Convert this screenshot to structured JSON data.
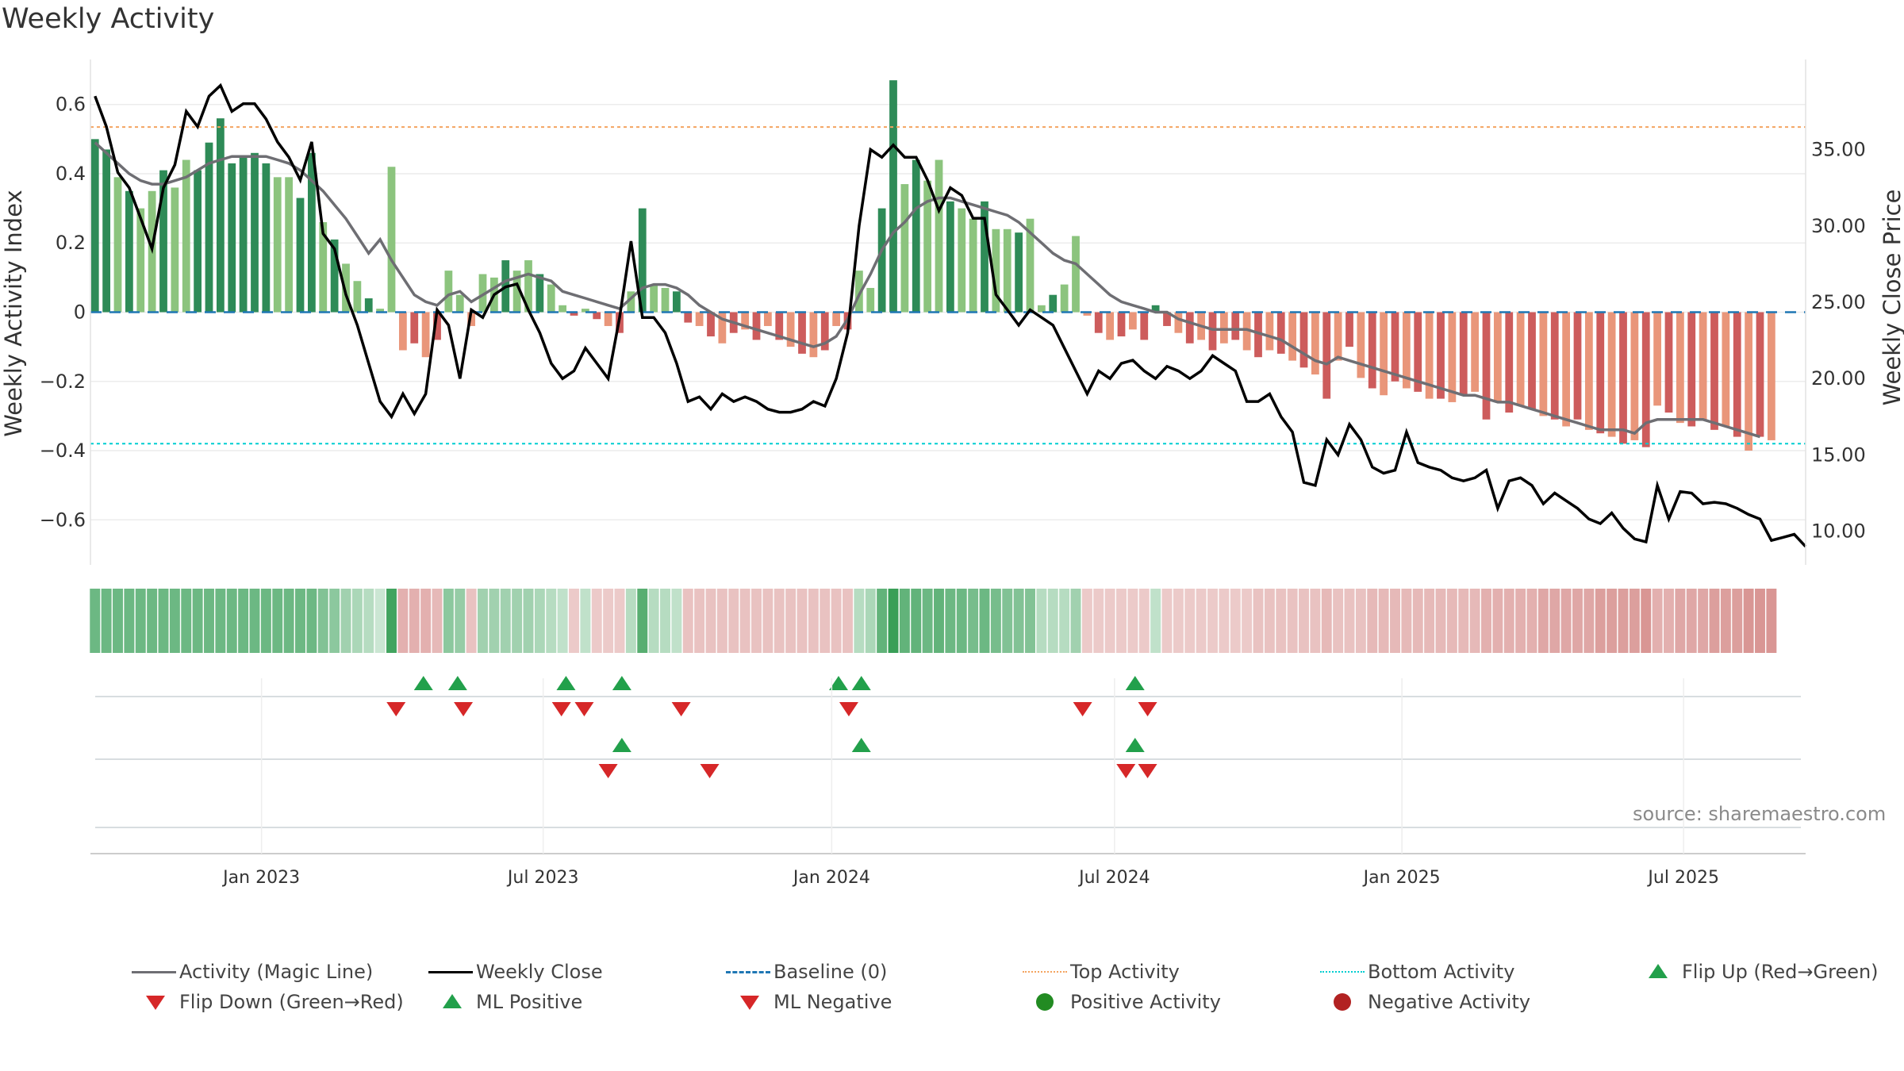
{
  "title": "Weekly Activity",
  "source": "source: sharemaestro.com",
  "colors": {
    "pos_strong": "#2e8b57",
    "pos_light": "#8cc47e",
    "neg_strong": "#cd5c5c",
    "neg_light": "#e9967a",
    "magic_line": "#6e6e73",
    "close_line": "#000000",
    "baseline": "#1f77b4",
    "top_activity": "#f4a460",
    "bottom_activity": "#00ced1",
    "flip_up": "#22a04b",
    "flip_down": "#d62728",
    "pos_dot": "#228b22",
    "neg_dot": "#b22222"
  },
  "legend": [
    {
      "label": "Activity (Magic Line)",
      "symbol": "line",
      "color": "#6e6e73",
      "style": "solid"
    },
    {
      "label": "Weekly Close",
      "symbol": "line",
      "color": "#000000",
      "style": "solid"
    },
    {
      "label": "Baseline (0)",
      "symbol": "line",
      "color": "#1f77b4",
      "style": "dashed"
    },
    {
      "label": "Top Activity",
      "symbol": "line",
      "color": "#f4a460",
      "style": "dotted"
    },
    {
      "label": "Bottom Activity",
      "symbol": "line",
      "color": "#00ced1",
      "style": "dotted"
    },
    {
      "label": "Flip Up (Red→Green)",
      "symbol": "tri-up",
      "color": "#22a04b"
    },
    {
      "label": "Flip Down (Green→Red)",
      "symbol": "tri-down",
      "color": "#d62728"
    },
    {
      "label": "ML Positive",
      "symbol": "tri-up",
      "color": "#22a04b"
    },
    {
      "label": "ML Negative",
      "symbol": "tri-down",
      "color": "#d62728"
    },
    {
      "label": "Positive Activity",
      "symbol": "dot",
      "color": "#228b22"
    },
    {
      "label": "Negative Activity",
      "symbol": "dot",
      "color": "#b22222"
    }
  ],
  "chart_data": {
    "type": "bar",
    "title": "Weekly Activity",
    "ylabel": "Weekly Activity Index",
    "y2label": "Weekly Close Price",
    "ylim": [
      -0.73,
      0.73
    ],
    "y2lim": [
      7.8,
      40.9
    ],
    "yticks": [
      0.6,
      0.4,
      0.2,
      0,
      -0.2,
      -0.4,
      -0.6
    ],
    "ytick_labels": [
      "0.6",
      "0.4",
      "0.2",
      "0",
      "−0.2",
      "−0.4",
      "−0.6"
    ],
    "y2ticks": [
      35,
      30,
      25,
      20,
      15,
      10
    ],
    "y2tick_labels": [
      "35.00",
      "30.00",
      "25.00",
      "20.00",
      "15.00",
      "10.00"
    ],
    "top_activity": 0.535,
    "bottom_activity": -0.38,
    "baseline": 0,
    "start_date": "2022-10-17",
    "week_count": 150,
    "x_range": [
      -0.4,
      150
    ],
    "xticks": [
      {
        "pos": 14.6,
        "label": "Jan 2023"
      },
      {
        "pos": 39.3,
        "label": "Jul 2023"
      },
      {
        "pos": 64.6,
        "label": "Jan 2024"
      },
      {
        "pos": 89.4,
        "label": "Jul 2024"
      },
      {
        "pos": 114.6,
        "label": "Jan 2025"
      },
      {
        "pos": 139.3,
        "label": "Jul 2025"
      }
    ],
    "series": [
      {
        "name": "Weekly Activity Index",
        "type": "bar",
        "values": [
          0.5,
          0.47,
          0.39,
          0.35,
          0.3,
          0.35,
          0.41,
          0.36,
          0.44,
          0.41,
          0.49,
          0.56,
          0.43,
          0.45,
          0.46,
          0.43,
          0.39,
          0.39,
          0.33,
          0.46,
          0.26,
          0.21,
          0.14,
          0.09,
          0.04,
          0.01,
          0.42,
          -0.11,
          -0.09,
          -0.13,
          -0.08,
          0.12,
          0.05,
          -0.04,
          0.11,
          0.1,
          0.15,
          0.12,
          0.15,
          0.11,
          0.08,
          0.02,
          -0.01,
          0.01,
          -0.02,
          -0.04,
          -0.06,
          0.06,
          0.3,
          0.08,
          0.07,
          0.06,
          -0.03,
          -0.04,
          -0.07,
          -0.09,
          -0.06,
          -0.05,
          -0.08,
          -0.04,
          -0.08,
          -0.1,
          -0.12,
          -0.13,
          -0.11,
          -0.04,
          -0.05,
          0.12,
          0.07,
          0.3,
          0.67,
          0.37,
          0.44,
          0.38,
          0.44,
          0.32,
          0.3,
          0.27,
          0.32,
          0.24,
          0.24,
          0.23,
          0.27,
          0.02,
          0.05,
          0.08,
          0.22,
          -0.01,
          -0.06,
          -0.08,
          -0.07,
          -0.05,
          -0.08,
          0.02,
          -0.04,
          -0.06,
          -0.09,
          -0.08,
          -0.11,
          -0.09,
          -0.08,
          -0.11,
          -0.13,
          -0.11,
          -0.12,
          -0.14,
          -0.16,
          -0.18,
          -0.25,
          -0.14,
          -0.1,
          -0.19,
          -0.22,
          -0.24,
          -0.2,
          -0.22,
          -0.23,
          -0.25,
          -0.25,
          -0.26,
          -0.24,
          -0.23,
          -0.31,
          -0.26,
          -0.29,
          -0.27,
          -0.28,
          -0.3,
          -0.31,
          -0.33,
          -0.31,
          -0.34,
          -0.35,
          -0.36,
          -0.38,
          -0.37,
          -0.39,
          -0.27,
          -0.29,
          -0.32,
          -0.33,
          -0.31,
          -0.34,
          -0.33,
          -0.36,
          -0.4,
          -0.36,
          -0.37
        ]
      },
      {
        "name": "Activity (Magic Line)",
        "type": "line",
        "values": [
          0.49,
          0.46,
          0.43,
          0.4,
          0.38,
          0.37,
          0.37,
          0.38,
          0.39,
          0.41,
          0.43,
          0.44,
          0.45,
          0.45,
          0.45,
          0.45,
          0.44,
          0.43,
          0.41,
          0.38,
          0.35,
          0.31,
          0.27,
          0.22,
          0.17,
          0.21,
          0.15,
          0.1,
          0.05,
          0.03,
          0.02,
          0.05,
          0.06,
          0.03,
          0.05,
          0.07,
          0.09,
          0.1,
          0.11,
          0.1,
          0.09,
          0.06,
          0.05,
          0.04,
          0.03,
          0.02,
          0.01,
          0.04,
          0.07,
          0.08,
          0.08,
          0.07,
          0.05,
          0.02,
          0,
          -0.02,
          -0.03,
          -0.04,
          -0.05,
          -0.06,
          -0.07,
          -0.08,
          -0.09,
          -0.1,
          -0.09,
          -0.07,
          -0.02,
          0.05,
          0.11,
          0.18,
          0.23,
          0.26,
          0.3,
          0.32,
          0.33,
          0.33,
          0.32,
          0.31,
          0.3,
          0.29,
          0.28,
          0.26,
          0.23,
          0.2,
          0.17,
          0.15,
          0.14,
          0.11,
          0.08,
          0.05,
          0.03,
          0.02,
          0.01,
          0,
          0,
          -0.02,
          -0.03,
          -0.04,
          -0.05,
          -0.05,
          -0.05,
          -0.05,
          -0.06,
          -0.07,
          -0.08,
          -0.1,
          -0.12,
          -0.14,
          -0.15,
          -0.13,
          -0.14,
          -0.15,
          -0.16,
          -0.17,
          -0.18,
          -0.19,
          -0.2,
          -0.21,
          -0.22,
          -0.23,
          -0.24,
          -0.24,
          -0.25,
          -0.26,
          -0.26,
          -0.27,
          -0.28,
          -0.29,
          -0.3,
          -0.31,
          -0.32,
          -0.33,
          -0.34,
          -0.34,
          -0.34,
          -0.35,
          -0.32,
          -0.31,
          -0.31,
          -0.31,
          -0.31,
          -0.31,
          -0.32,
          -0.33,
          -0.34,
          -0.35,
          -0.36
        ]
      },
      {
        "name": "Weekly Close",
        "type": "line",
        "axis": "y2",
        "values": [
          38.5,
          36.5,
          33.5,
          32.5,
          30.5,
          28.5,
          32.5,
          34,
          37.5,
          36.5,
          38.5,
          39.2,
          37.5,
          38,
          38,
          37,
          35.5,
          34.5,
          33,
          35.5,
          29.5,
          28.5,
          25.5,
          23.5,
          21,
          18.5,
          17.5,
          19,
          17.7,
          19,
          24.5,
          23.5,
          20,
          24.5,
          24,
          25.5,
          26,
          26.2,
          24.5,
          23,
          21,
          20,
          20.5,
          22,
          21,
          20,
          24,
          29,
          24,
          24,
          23,
          21,
          18.5,
          18.8,
          18,
          19,
          18.5,
          18.8,
          18.5,
          18,
          17.8,
          17.8,
          18,
          18.5,
          18.2,
          20,
          23,
          30,
          35,
          34.5,
          35.3,
          34.5,
          34.5,
          33,
          31,
          32.5,
          32,
          30.5,
          30.5,
          25.5,
          24.5,
          23.5,
          24.5,
          24,
          23.5,
          22,
          20.5,
          19,
          20.5,
          20,
          21,
          21.2,
          20.5,
          20,
          20.8,
          20.5,
          20,
          20.5,
          21.5,
          21,
          20.5,
          18.5,
          18.5,
          19,
          17.5,
          16.5,
          13.2,
          13,
          16,
          15,
          17,
          16,
          14.2,
          13.8,
          14,
          16.5,
          14.5,
          14.2,
          14,
          13.5,
          13.3,
          13.5,
          14,
          11.5,
          13.3,
          13.5,
          13,
          11.8,
          12.5,
          12,
          11.5,
          10.8,
          10.5,
          11.2,
          10.2,
          9.5,
          9.3,
          13,
          10.8,
          12.6,
          12.5,
          11.8,
          11.9,
          11.8,
          11.5,
          11.1,
          10.8,
          9.4,
          9.6,
          9.8,
          9
        ]
      }
    ],
    "strip_opacity": [
      0.7,
      0.7,
      0.7,
      0.7,
      0.7,
      0.7,
      0.7,
      0.7,
      0.7,
      0.7,
      0.7,
      0.7,
      0.7,
      0.7,
      0.7,
      0.7,
      0.7,
      0.7,
      0.7,
      0.7,
      0.6,
      0.55,
      0.45,
      0.4,
      0.35,
      0.25,
      0.9,
      0.45,
      0.45,
      0.45,
      0.4,
      0.55,
      0.5,
      0.35,
      0.45,
      0.45,
      0.45,
      0.45,
      0.45,
      0.4,
      0.35,
      0.3,
      0.3,
      0.3,
      0.3,
      0.3,
      0.3,
      0.35,
      0.8,
      0.35,
      0.35,
      0.3,
      0.35,
      0.35,
      0.35,
      0.35,
      0.35,
      0.35,
      0.35,
      0.35,
      0.35,
      0.35,
      0.35,
      0.35,
      0.35,
      0.35,
      0.35,
      0.35,
      0.4,
      0.75,
      0.95,
      0.75,
      0.75,
      0.7,
      0.75,
      0.7,
      0.7,
      0.65,
      0.7,
      0.65,
      0.6,
      0.6,
      0.6,
      0.35,
      0.35,
      0.35,
      0.45,
      0.3,
      0.3,
      0.3,
      0.3,
      0.3,
      0.3,
      0.3,
      0.3,
      0.3,
      0.3,
      0.3,
      0.3,
      0.3,
      0.3,
      0.3,
      0.35,
      0.35,
      0.35,
      0.35,
      0.35,
      0.35,
      0.4,
      0.35,
      0.35,
      0.35,
      0.4,
      0.4,
      0.4,
      0.4,
      0.4,
      0.4,
      0.4,
      0.4,
      0.4,
      0.4,
      0.45,
      0.45,
      0.45,
      0.45,
      0.45,
      0.5,
      0.5,
      0.5,
      0.5,
      0.5,
      0.55,
      0.55,
      0.55,
      0.55,
      0.6,
      0.45,
      0.45,
      0.5,
      0.5,
      0.5,
      0.55,
      0.55,
      0.55,
      0.6,
      0.6,
      0.6
    ],
    "events": {
      "flip_up": [
        28.8,
        31.8,
        41.3,
        46.2,
        65.2,
        67.2,
        91.2
      ],
      "flip_down": [
        26.4,
        32.3,
        40.9,
        42.9,
        51.4,
        66.1,
        86.6,
        92.3
      ],
      "ml_positive": [
        46.2,
        67.2,
        91.2
      ],
      "ml_negative": [
        45.0,
        53.9,
        90.4,
        92.3
      ]
    }
  }
}
